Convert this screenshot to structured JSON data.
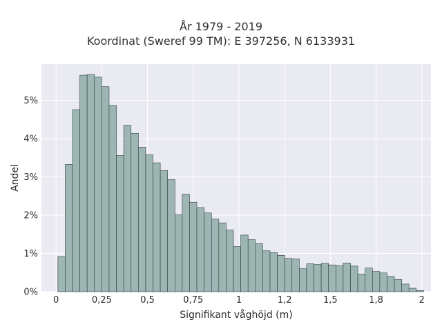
{
  "chart_data": {
    "type": "bar",
    "title_line1": "År 1979 - 2019",
    "title_line2": "Koordinat (Sweref 99 TM): E 397256, N 6133931",
    "xlabel": "Signifikant våghöjd (m)",
    "ylabel": "Andel",
    "xlim": [
      -0.08,
      2.05
    ],
    "ylim": [
      0,
      5.95
    ],
    "bin_width": 0.04,
    "bin_start": 0.01,
    "x_ticks": [
      {
        "value": 0,
        "label": "0"
      },
      {
        "value": 0.25,
        "label": "0,25"
      },
      {
        "value": 0.5,
        "label": "0,5"
      },
      {
        "value": 0.75,
        "label": "0,75"
      },
      {
        "value": 1,
        "label": "1"
      },
      {
        "value": 1.25,
        "label": "1,2"
      },
      {
        "value": 1.5,
        "label": "1,5"
      },
      {
        "value": 1.75,
        "label": "1,8"
      },
      {
        "value": 2,
        "label": "2"
      }
    ],
    "y_ticks": [
      {
        "value": 0,
        "label": "0%"
      },
      {
        "value": 1,
        "label": "1%"
      },
      {
        "value": 2,
        "label": "2%"
      },
      {
        "value": 3,
        "label": "3%"
      },
      {
        "value": 4,
        "label": "4%"
      },
      {
        "value": 5,
        "label": "5%"
      }
    ],
    "values": [
      0.92,
      3.33,
      4.76,
      5.66,
      5.68,
      5.61,
      5.36,
      4.87,
      3.56,
      4.35,
      4.14,
      3.78,
      3.58,
      3.37,
      3.17,
      2.93,
      2.01,
      2.55,
      2.34,
      2.2,
      2.06,
      1.9,
      1.8,
      1.61,
      1.18,
      1.48,
      1.36,
      1.26,
      1.07,
      1.02,
      0.95,
      0.87,
      0.86,
      0.6,
      0.73,
      0.71,
      0.74,
      0.7,
      0.68,
      0.75,
      0.67,
      0.46,
      0.62,
      0.53,
      0.49,
      0.4,
      0.32,
      0.2,
      0.09,
      0.03
    ],
    "colors": {
      "bar_fill": "#9db6b3",
      "bar_stroke": "#2d3d3a",
      "plot_bg": "#eaeaf2",
      "grid": "#ffffff"
    },
    "grid": true
  }
}
